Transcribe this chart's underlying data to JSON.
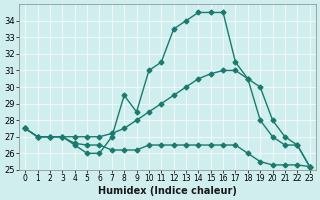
{
  "xlabel": "Humidex (Indice chaleur)",
  "ylabel": "",
  "bg_color": "#d0eeee",
  "line_color": "#1a7a6e",
  "xlim": [
    -0.5,
    23.5
  ],
  "ylim": [
    25,
    35
  ],
  "yticks": [
    25,
    26,
    27,
    28,
    29,
    30,
    31,
    32,
    33,
    34
  ],
  "xticks": [
    0,
    1,
    2,
    3,
    4,
    5,
    6,
    7,
    8,
    9,
    10,
    11,
    12,
    13,
    14,
    15,
    16,
    17,
    18,
    19,
    20,
    21,
    22,
    23
  ],
  "series": [
    [
      27.5,
      27.0,
      27.0,
      27.0,
      26.5,
      26.0,
      26.0,
      27.0,
      29.5,
      28.5,
      31.0,
      31.5,
      33.5,
      34.0,
      34.5,
      34.5,
      34.5,
      31.5,
      30.5,
      28.0,
      27.0,
      26.5,
      26.5,
      25.2
    ],
    [
      27.5,
      27.0,
      27.0,
      27.0,
      26.6,
      26.5,
      26.5,
      26.2,
      26.2,
      26.2,
      26.5,
      26.5,
      26.5,
      26.5,
      26.5,
      26.5,
      26.5,
      26.5,
      26.0,
      25.5,
      25.3,
      25.3,
      25.3,
      25.2
    ],
    [
      27.5,
      27.0,
      27.0,
      27.0,
      27.0,
      27.0,
      27.0,
      27.2,
      27.5,
      28.0,
      28.5,
      29.0,
      29.5,
      30.0,
      30.5,
      30.8,
      31.0,
      31.0,
      30.5,
      30.0,
      28.0,
      27.0,
      26.5,
      25.2
    ]
  ]
}
